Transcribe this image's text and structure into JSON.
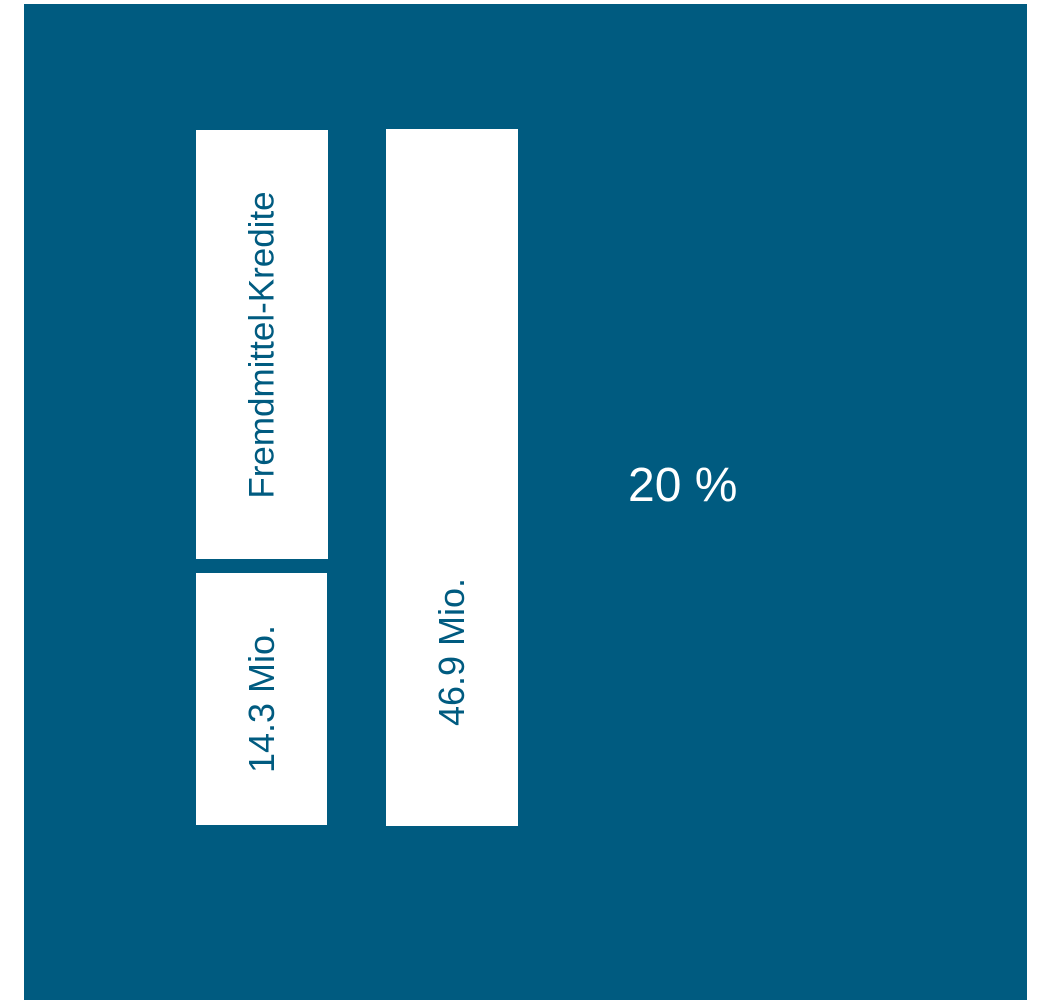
{
  "colors": {
    "background": "#005b80",
    "box": "#ffffff",
    "box_text": "#005b80",
    "percent_text": "#ffffff"
  },
  "category_label": "Fremdmittel-Kredite",
  "small_value": "14.3 Mio.",
  "large_value": "46.9 Mio.",
  "share": "20 %"
}
